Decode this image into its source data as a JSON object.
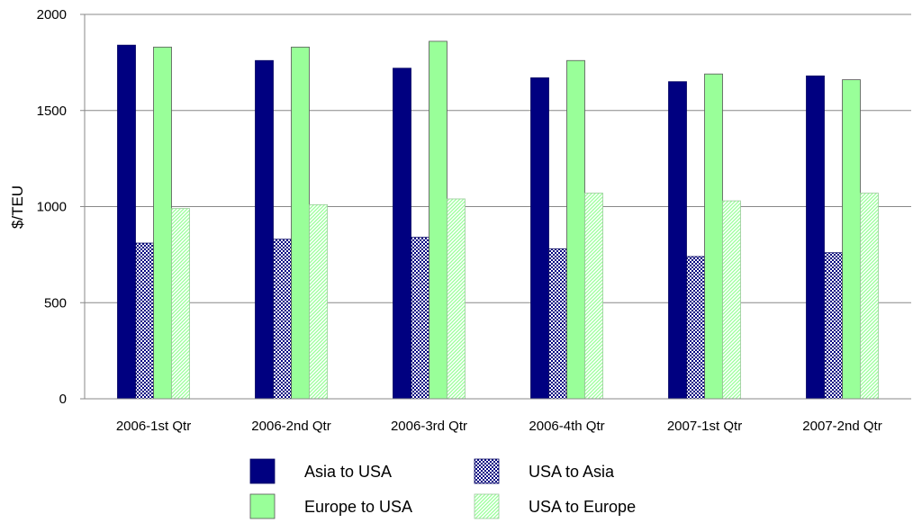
{
  "chart_data": {
    "type": "bar",
    "title": "",
    "xlabel": "",
    "ylabel": "$/TEU",
    "ylim": [
      0,
      2000
    ],
    "yticks": [
      0,
      500,
      1000,
      1500,
      2000
    ],
    "grid": true,
    "legend_position": "bottom",
    "categories": [
      "2006-1st Qtr",
      "2006-2nd Qtr",
      "2006-3rd Qtr",
      "2006-4th Qtr",
      "2007-1st Qtr",
      "2007-2nd Qtr"
    ],
    "series": [
      {
        "name": "Asia to USA",
        "color": "#000080",
        "pattern": "solid",
        "values": [
          1840,
          1760,
          1720,
          1670,
          1650,
          1680
        ]
      },
      {
        "name": "USA to Asia",
        "color": "#000080",
        "pattern": "checker",
        "values": [
          810,
          830,
          840,
          780,
          740,
          760
        ]
      },
      {
        "name": "Europe to USA",
        "color": "#99ff99",
        "pattern": "solid",
        "values": [
          1830,
          1830,
          1860,
          1760,
          1690,
          1660
        ]
      },
      {
        "name": "USA to Europe",
        "color": "#99ff99",
        "pattern": "diagonal",
        "values": [
          990,
          1010,
          1040,
          1070,
          1030,
          1070
        ]
      }
    ]
  }
}
